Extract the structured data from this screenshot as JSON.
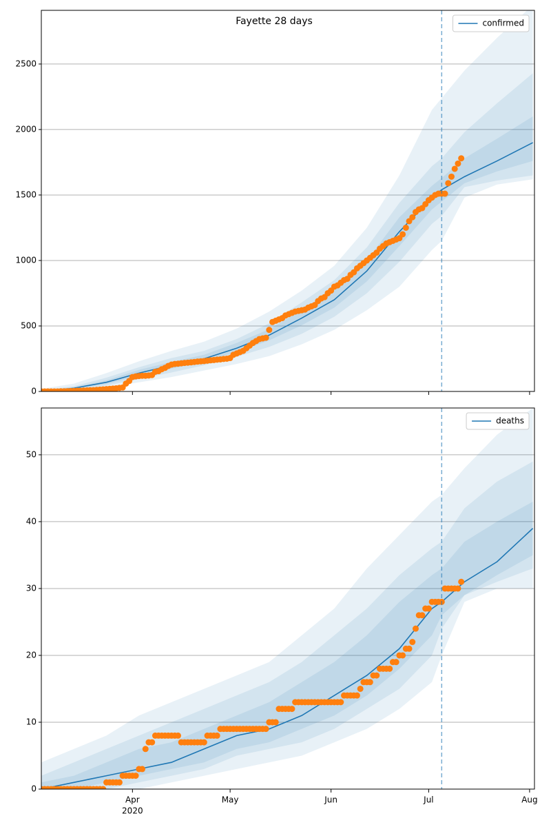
{
  "chart_data": [
    {
      "type": "line",
      "title": "Fayette 28 days",
      "xlim": [
        0,
        151.5
      ],
      "ylim": [
        0,
        2910
      ],
      "yticks": [
        0,
        500,
        1000,
        1500,
        2000,
        2500
      ],
      "xticks": [
        28,
        58,
        89,
        119,
        150
      ],
      "grid": true,
      "legend": "upper right",
      "vline_x": 123,
      "model_x": [
        0,
        10,
        20,
        30,
        40,
        50,
        60,
        70,
        80,
        90,
        100,
        110,
        120,
        123,
        130,
        140,
        151
      ],
      "series": [
        {
          "name": "confirmed",
          "color": "#1f77b4",
          "values": [
            0,
            25,
            70,
            140,
            200,
            250,
            330,
            430,
            560,
            700,
            920,
            1220,
            1480,
            1540,
            1640,
            1760,
            1900
          ]
        }
      ],
      "band_color": "#1f77b4",
      "bands": [
        {
          "lower": [
            0,
            5,
            30,
            70,
            110,
            160,
            210,
            270,
            360,
            470,
            620,
            800,
            1080,
            1150,
            1480,
            1580,
            1620
          ],
          "upper": [
            20,
            60,
            140,
            230,
            310,
            380,
            480,
            610,
            770,
            960,
            1250,
            1650,
            2150,
            2240,
            2450,
            2700,
            2950
          ]
        },
        {
          "lower": [
            0,
            12,
            45,
            95,
            145,
            200,
            265,
            340,
            440,
            570,
            750,
            990,
            1280,
            1340,
            1560,
            1610,
            1650
          ],
          "upper": [
            8,
            40,
            105,
            185,
            255,
            310,
            400,
            520,
            680,
            850,
            1100,
            1440,
            1720,
            1780,
            1980,
            2200,
            2430
          ]
        },
        {
          "lower": [
            0,
            18,
            57,
            118,
            175,
            228,
            300,
            390,
            505,
            640,
            840,
            1110,
            1390,
            1450,
            1590,
            1680,
            1760
          ],
          "upper": [
            3,
            32,
            85,
            165,
            225,
            280,
            370,
            475,
            620,
            770,
            1000,
            1330,
            1570,
            1630,
            1780,
            1930,
            2100
          ]
        }
      ],
      "observed": {
        "color": "#ff7f0e",
        "x": [
          0,
          1,
          2,
          3,
          4,
          5,
          6,
          7,
          8,
          9,
          10,
          11,
          12,
          13,
          14,
          15,
          16,
          17,
          18,
          19,
          20,
          21,
          22,
          23,
          24,
          25,
          26,
          27,
          28,
          29,
          30,
          31,
          32,
          33,
          34,
          35,
          36,
          37,
          38,
          39,
          40,
          41,
          42,
          43,
          44,
          45,
          46,
          47,
          48,
          49,
          50,
          51,
          52,
          53,
          54,
          55,
          56,
          57,
          58,
          59,
          60,
          61,
          62,
          63,
          64,
          65,
          66,
          67,
          68,
          69,
          70,
          71,
          72,
          73,
          74,
          75,
          76,
          77,
          78,
          79,
          80,
          81,
          82,
          83,
          84,
          85,
          86,
          87,
          88,
          89,
          90,
          91,
          92,
          93,
          94,
          95,
          96,
          97,
          98,
          99,
          100,
          101,
          102,
          103,
          104,
          105,
          106,
          107,
          108,
          109,
          110,
          111,
          112,
          113,
          114,
          115,
          116,
          117,
          118,
          119,
          120,
          121,
          122,
          123,
          124,
          125,
          126,
          127,
          128,
          129
        ],
        "values": [
          0,
          0,
          0,
          0,
          0,
          0,
          1,
          1,
          2,
          3,
          4,
          5,
          6,
          7,
          8,
          9,
          10,
          12,
          14,
          16,
          18,
          20,
          22,
          24,
          27,
          30,
          60,
          80,
          110,
          115,
          118,
          120,
          120,
          122,
          125,
          150,
          155,
          170,
          180,
          195,
          205,
          210,
          212,
          215,
          218,
          220,
          222,
          225,
          228,
          230,
          232,
          235,
          238,
          240,
          243,
          245,
          248,
          250,
          255,
          280,
          290,
          300,
          310,
          330,
          350,
          370,
          385,
          400,
          405,
          410,
          470,
          530,
          540,
          550,
          560,
          580,
          590,
          600,
          610,
          615,
          620,
          625,
          640,
          650,
          660,
          690,
          710,
          720,
          750,
          770,
          800,
          810,
          830,
          850,
          860,
          890,
          910,
          940,
          960,
          980,
          1000,
          1020,
          1040,
          1060,
          1090,
          1110,
          1130,
          1140,
          1150,
          1160,
          1170,
          1200,
          1250,
          1300,
          1330,
          1370,
          1390,
          1400,
          1430,
          1460,
          1480,
          1500,
          1510,
          1510,
          1510,
          1590,
          1640,
          1700,
          1740,
          1780
        ]
      }
    },
    {
      "type": "line",
      "xlim": [
        0,
        151.5
      ],
      "ylim": [
        0,
        57
      ],
      "yticks": [
        0,
        10,
        20,
        30,
        40,
        50
      ],
      "xticks": [
        {
          "value": 28,
          "label": "Apr"
        },
        {
          "value": 58,
          "label": "May"
        },
        {
          "value": 89,
          "label": "Jun"
        },
        {
          "value": 119,
          "label": "Jul"
        },
        {
          "value": 150,
          "label": "Aug"
        }
      ],
      "x_sublabel": "2020",
      "grid": true,
      "legend": "upper right",
      "vline_x": 123,
      "model_x": [
        0,
        10,
        20,
        30,
        40,
        50,
        60,
        70,
        80,
        90,
        100,
        110,
        120,
        123,
        130,
        140,
        151
      ],
      "series": [
        {
          "name": "deaths",
          "color": "#1f77b4",
          "values": [
            0,
            1,
            2,
            3,
            4,
            6,
            8,
            9,
            11,
            14,
            17,
            21,
            27,
            28,
            31,
            34,
            39
          ]
        }
      ],
      "band_color": "#1f77b4",
      "bands": [
        {
          "lower": [
            0,
            0,
            0,
            0,
            1,
            2,
            3,
            4,
            5,
            7,
            9,
            12,
            16,
            20,
            28,
            30,
            30
          ],
          "upper": [
            4,
            6,
            8,
            11,
            13,
            15,
            17,
            19,
            23,
            27,
            33,
            38,
            43,
            44,
            48,
            53,
            57
          ]
        },
        {
          "lower": [
            0,
            0,
            0,
            1,
            2,
            3,
            5,
            6,
            7,
            9,
            12,
            15,
            20,
            24,
            29,
            31,
            33
          ],
          "upper": [
            2,
            4,
            6,
            8,
            10,
            12,
            14,
            16,
            19,
            23,
            27,
            32,
            36,
            37,
            42,
            46,
            49
          ]
        },
        {
          "lower": [
            0,
            0,
            1,
            2,
            3,
            4,
            6,
            7,
            9,
            11,
            14,
            18,
            23,
            26,
            29,
            32,
            35
          ],
          "upper": [
            1,
            2,
            4,
            6,
            7,
            9,
            11,
            13,
            16,
            19,
            23,
            28,
            32,
            33,
            37,
            40,
            43
          ]
        }
      ],
      "observed": {
        "color": "#ff7f0e",
        "x": [
          0,
          1,
          2,
          3,
          4,
          5,
          6,
          7,
          8,
          9,
          10,
          11,
          12,
          13,
          14,
          15,
          16,
          17,
          18,
          19,
          20,
          21,
          22,
          23,
          24,
          25,
          26,
          27,
          28,
          29,
          30,
          31,
          32,
          33,
          34,
          35,
          36,
          37,
          38,
          39,
          40,
          41,
          42,
          43,
          44,
          45,
          46,
          47,
          48,
          49,
          50,
          51,
          52,
          53,
          54,
          55,
          56,
          57,
          58,
          59,
          60,
          61,
          62,
          63,
          64,
          65,
          66,
          67,
          68,
          69,
          70,
          71,
          72,
          73,
          74,
          75,
          76,
          77,
          78,
          79,
          80,
          81,
          82,
          83,
          84,
          85,
          86,
          87,
          88,
          89,
          90,
          91,
          92,
          93,
          94,
          95,
          96,
          97,
          98,
          99,
          100,
          101,
          102,
          103,
          104,
          105,
          106,
          107,
          108,
          109,
          110,
          111,
          112,
          113,
          114,
          115,
          116,
          117,
          118,
          119,
          120,
          121,
          122,
          123,
          124,
          125,
          126,
          127,
          128,
          129
        ],
        "values": [
          0,
          0,
          0,
          0,
          0,
          0,
          0,
          0,
          0,
          0,
          0,
          0,
          0,
          0,
          0,
          0,
          0,
          0,
          0,
          0,
          1,
          1,
          1,
          1,
          1,
          2,
          2,
          2,
          2,
          2,
          3,
          3,
          6,
          7,
          7,
          8,
          8,
          8,
          8,
          8,
          8,
          8,
          8,
          7,
          7,
          7,
          7,
          7,
          7,
          7,
          7,
          8,
          8,
          8,
          8,
          9,
          9,
          9,
          9,
          9,
          9,
          9,
          9,
          9,
          9,
          9,
          9,
          9,
          9,
          9,
          10,
          10,
          10,
          12,
          12,
          12,
          12,
          12,
          13,
          13,
          13,
          13,
          13,
          13,
          13,
          13,
          13,
          13,
          13,
          13,
          13,
          13,
          13,
          14,
          14,
          14,
          14,
          14,
          15,
          16,
          16,
          16,
          17,
          17,
          18,
          18,
          18,
          18,
          19,
          19,
          20,
          20,
          21,
          21,
          22,
          24,
          26,
          26,
          27,
          27,
          28,
          28,
          28,
          28,
          30,
          30,
          30,
          30,
          30,
          31
        ]
      }
    }
  ]
}
